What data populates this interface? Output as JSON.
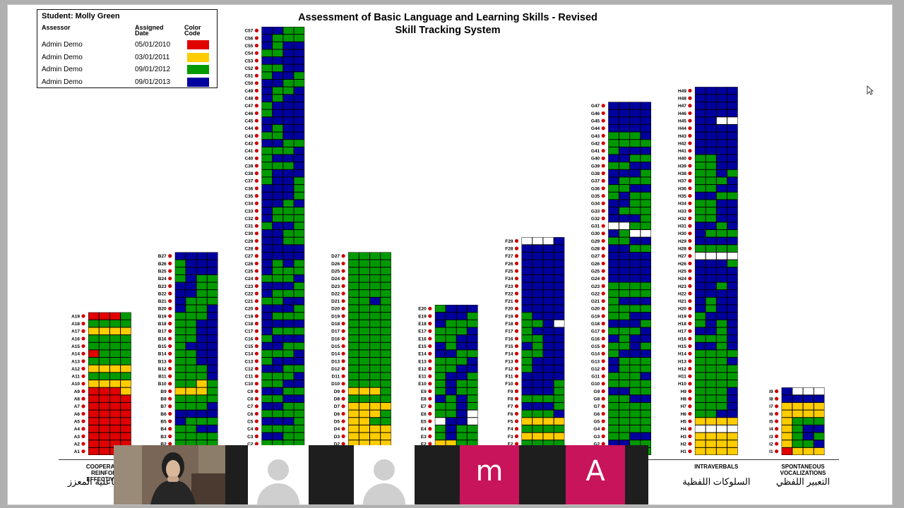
{
  "chart_data": {
    "type": "heatmap",
    "title": "Assessment of Basic Language and Learning Skills - Revised",
    "subtitle": "Skill Tracking System",
    "legend": {
      "student": "Student: Molly Green",
      "col_assessor": "Assessor",
      "col_date": "Assigned Date",
      "col_color": "Color Code",
      "rows": [
        {
          "assessor": "Admin Demo",
          "date": "05/01/2010",
          "color": "#e00000"
        },
        {
          "assessor": "Admin Demo",
          "date": "03/01/2011",
          "color": "#ffcc00"
        },
        {
          "assessor": "Admin Demo",
          "date": "09/01/2012",
          "color": "#009a00"
        },
        {
          "assessor": "Admin Demo",
          "date": "09/01/2013",
          "color": "#00009e"
        }
      ]
    },
    "palette": [
      "#ffffff",
      "#e00000",
      "#ffcc00",
      "#009a00",
      "#00009e"
    ],
    "sections": [
      {
        "letter": "A",
        "count": 19,
        "label": "COOPERATION & REINFORCER EFFECTIVENESS",
        "label_ar": "التعاون وفاعلية المعزز",
        "pattern": "1111111111111111111111111111111111122222333322223333133333333333222233331113333344333334444444344433334434443344434433344444334444"
      },
      {
        "letter": "B",
        "count": 27,
        "label": "",
        "label_ar": "",
        "pattern": "3333333333333344433344443334333322233323333433343344334434443344334433443334433443334433443334333444344444444444444444444444444444440000"
      },
      {
        "letter": "C",
        "count": 57,
        "label": "",
        "label_ar": "",
        "pattern": "331133334433333344433333443333444433334433344433344433344433344443334444433344433344433344433334433343434444444444334433344343334333443444434443344334443334344433344433334443444444344434444344433444333443334444443344434443334433344443344434444344433344400"
      },
      {
        "letter": "D",
        "count": 27,
        "label": "",
        "label_ar": "",
        "pattern": "3343222222222222223322232222333322233333333333333333333333333333333333333333333333433333333333333333333333333333333333333333333333333333333333"
      },
      {
        "letter": "E",
        "count": 20,
        "label": "",
        "label_ar": "",
        "pattern": "22322233343334330440334033434343343334333443334433344433434433443334433344433444333443334433344"
      },
      {
        "letter": "F",
        "count": 29,
        "label": "",
        "label_ar": "",
        "pattern": "22223333222233332222333444433333444344434444344434443344434433443444334034444444444444444444444444444444444444440004444444444444444444440004440044403333"
      },
      {
        "letter": "G",
        "count": 47,
        "label": "",
        "label_ar": "",
        "pattern": "333344333344333333333333333333444433333333344333433334443343434433344443334433333444333333334444444444444444443333444300003344434333443334333344433344433344443334443333333444444444444444444444444444444444444444444444444444444344444044404440333344422223"
      },
      {
        "letter": "H",
        "count": 49,
        "label": "INTRAVERBALS",
        "label_ar": "السلوكات اللفظية",
        "pattern": "22222222222200002222334433343334333433333333333333343333443433344434343434444344434444444434444444444443000033334444433344343344334433444433334433343343334433444444444444444444440044444444444444444444444400444444444400440044440033444434444344433334444444"
      },
      {
        "letter": "I",
        "count": 9,
        "label": "SPONTANEOUS VOCALIZATIONS",
        "label_ar": "التعبير اللفظي",
        "pattern": "122223342343234423332222222244444"
      }
    ]
  },
  "video_tiles": [
    {
      "type": "camera",
      "name": "presenter-video"
    },
    {
      "type": "avatar",
      "name": "participant-avatar-1"
    },
    {
      "type": "avatar",
      "name": "participant-avatar-2"
    },
    {
      "type": "letter",
      "name": "participant-m",
      "letter": "m",
      "color": "#c8145a"
    },
    {
      "type": "letter",
      "name": "participant-a",
      "letter": "A",
      "color": "#c8145a"
    }
  ]
}
